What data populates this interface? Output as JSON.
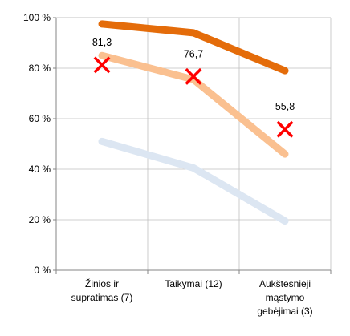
{
  "chart_data": {
    "type": "line",
    "categories": [
      [
        "Žinios ir",
        "supratimas (7)"
      ],
      [
        "Taikymai (12)"
      ],
      [
        "Aukštesnieji",
        "mąstymo",
        "gebėjimai (3)"
      ]
    ],
    "y_ticks": [
      "0 %",
      "20 %",
      "40 %",
      "60 %",
      "80 %",
      "100 %"
    ],
    "ylim": [
      0,
      100
    ],
    "grid": true,
    "legend": "none",
    "series": [
      {
        "color": "#e46c0a",
        "values": [
          97.5,
          94,
          79
        ]
      },
      {
        "color": "#fac090",
        "values": [
          85,
          75.5,
          46
        ]
      },
      {
        "color": "#dce6f2",
        "values": [
          51,
          40.5,
          19.5
        ]
      }
    ],
    "markers": {
      "style": "x",
      "color": "#ff0000",
      "values": [
        81.3,
        76.7,
        55.8
      ],
      "labels": [
        "81,3",
        "76,7",
        "55,8"
      ]
    }
  }
}
